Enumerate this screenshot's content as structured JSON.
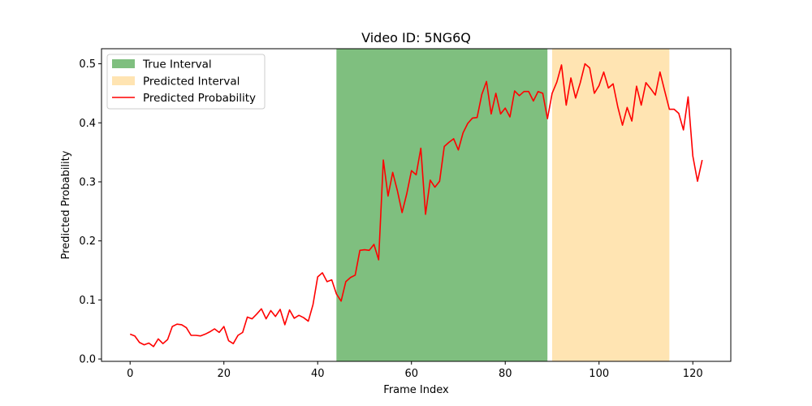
{
  "chart_data": {
    "type": "line",
    "title": "Video ID: 5NG6Q",
    "xlabel": "Frame Index",
    "ylabel": "Predicted Probability",
    "xlim": [
      -6.1,
      128.1
    ],
    "ylim": [
      -0.004,
      0.5255
    ],
    "xticks": [
      0,
      20,
      40,
      60,
      80,
      100,
      120
    ],
    "xtick_labels": [
      "0",
      "20",
      "40",
      "60",
      "80",
      "100",
      "120"
    ],
    "yticks": [
      0.0,
      0.1,
      0.2,
      0.3,
      0.4,
      0.5
    ],
    "ytick_labels": [
      "0.0",
      "0.1",
      "0.2",
      "0.3",
      "0.4",
      "0.5"
    ],
    "grid": false,
    "legend_position": "upper-left",
    "intervals": [
      {
        "name": "True Interval",
        "start": 44,
        "end": 89,
        "color": "#008000",
        "alpha": 0.5
      },
      {
        "name": "Predicted Interval",
        "start": 90,
        "end": 115,
        "color": "#ffa500",
        "alpha": 0.3
      }
    ],
    "series": [
      {
        "name": "Predicted Probability",
        "color": "#ff0000",
        "x": [
          0,
          1,
          2,
          3,
          4,
          5,
          6,
          7,
          8,
          9,
          10,
          11,
          12,
          13,
          14,
          15,
          16,
          17,
          18,
          19,
          20,
          21,
          22,
          23,
          24,
          25,
          26,
          27,
          28,
          29,
          30,
          31,
          32,
          33,
          34,
          35,
          36,
          37,
          38,
          39,
          40,
          41,
          42,
          43,
          44,
          45,
          46,
          47,
          48,
          49,
          50,
          51,
          52,
          53,
          54,
          55,
          56,
          57,
          58,
          59,
          60,
          61,
          62,
          63,
          64,
          65,
          66,
          67,
          68,
          69,
          70,
          71,
          72,
          73,
          74,
          75,
          76,
          77,
          78,
          79,
          80,
          81,
          82,
          83,
          84,
          85,
          86,
          87,
          88,
          89,
          90,
          91,
          92,
          93,
          94,
          95,
          96,
          97,
          98,
          99,
          100,
          101,
          102,
          103,
          104,
          105,
          106,
          107,
          108,
          109,
          110,
          111,
          112,
          113,
          114,
          115,
          116,
          117,
          118,
          119,
          120,
          121,
          122
        ],
        "values": [
          0.042,
          0.039,
          0.028,
          0.024,
          0.027,
          0.021,
          0.034,
          0.026,
          0.033,
          0.055,
          0.059,
          0.058,
          0.053,
          0.04,
          0.04,
          0.039,
          0.042,
          0.046,
          0.051,
          0.045,
          0.055,
          0.031,
          0.026,
          0.04,
          0.045,
          0.071,
          0.068,
          0.076,
          0.085,
          0.068,
          0.082,
          0.072,
          0.084,
          0.058,
          0.083,
          0.069,
          0.074,
          0.07,
          0.064,
          0.092,
          0.139,
          0.146,
          0.131,
          0.134,
          0.11,
          0.098,
          0.131,
          0.138,
          0.142,
          0.184,
          0.185,
          0.184,
          0.194,
          0.168,
          0.337,
          0.276,
          0.316,
          0.285,
          0.248,
          0.28,
          0.319,
          0.312,
          0.357,
          0.245,
          0.303,
          0.291,
          0.301,
          0.36,
          0.367,
          0.373,
          0.354,
          0.383,
          0.399,
          0.408,
          0.409,
          0.448,
          0.47,
          0.415,
          0.45,
          0.415,
          0.425,
          0.41,
          0.454,
          0.446,
          0.453,
          0.453,
          0.437,
          0.453,
          0.45,
          0.407,
          0.45,
          0.469,
          0.498,
          0.43,
          0.476,
          0.442,
          0.468,
          0.5,
          0.493,
          0.45,
          0.463,
          0.486,
          0.459,
          0.466,
          0.427,
          0.396,
          0.426,
          0.403,
          0.462,
          0.43,
          0.468,
          0.458,
          0.447,
          0.486,
          0.454,
          0.423,
          0.423,
          0.416,
          0.388,
          0.444,
          0.344,
          0.301,
          0.337
        ]
      }
    ]
  }
}
